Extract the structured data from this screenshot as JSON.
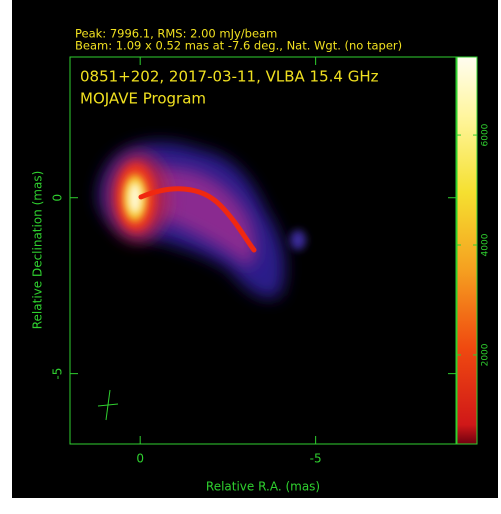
{
  "chart_data": {
    "type": "image",
    "header": [
      "Peak: 7996.1, RMS: 2.00 mJy/beam",
      "Beam: 1.09 x 0.52 mas at -7.6 deg., Nat. Wgt. (no taper)"
    ],
    "title": "0851+202, 2017-03-11, VLBA 15.4 GHz",
    "subtitle": "MOJAVE Program",
    "x_label": "Relative R.A. (mas)",
    "y_label": "Relative Declination (mas)",
    "xlim": [
      2,
      -9
    ],
    "xticks": [
      0,
      -5
    ],
    "ylim": [
      -7,
      4
    ],
    "yticks": [
      0,
      -5
    ],
    "clim": [
      380,
      7420
    ],
    "cticks": [
      2000,
      4000,
      6000
    ]
  }
}
